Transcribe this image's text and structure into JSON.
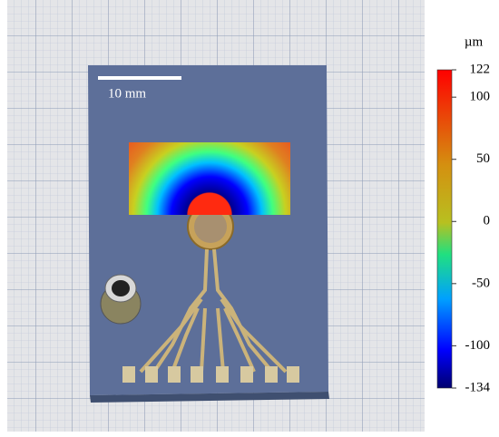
{
  "scale_bar": {
    "label": "10 mm"
  },
  "colorbar": {
    "unit": "µm",
    "lim": [
      -134,
      122
    ],
    "ticks": [
      122,
      100,
      50,
      0,
      -50,
      -100,
      -134
    ]
  }
}
